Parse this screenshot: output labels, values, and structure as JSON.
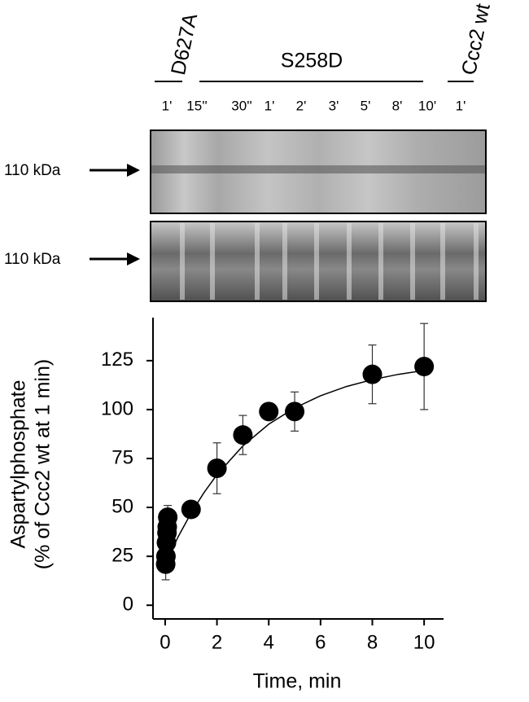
{
  "gel": {
    "groups": [
      "D627A",
      "S258D",
      "Ccc2 wt"
    ],
    "lanes": [
      "1'",
      "15''",
      "30''",
      "1'",
      "2'",
      "3'",
      "5'",
      "8'",
      "10'",
      "1'"
    ],
    "markers": [
      "110 kDa",
      "110 kDa"
    ]
  },
  "chart_data": {
    "type": "scatter",
    "x_label": "Time, min",
    "y_label": [
      "Aspartylphosphate",
      "(% of Ccc2 wt at 1 min)"
    ],
    "series": [
      {
        "color": "#000000",
        "x": [
          0.02,
          0.03,
          0.05,
          0.07,
          0.08,
          0.1,
          1,
          2,
          3,
          4,
          5,
          8,
          10
        ],
        "values": [
          21,
          25,
          32,
          37,
          40,
          45,
          49,
          70,
          87,
          99,
          99,
          118,
          122
        ],
        "errors": [
          8,
          6,
          5,
          5,
          5,
          6,
          2,
          13,
          10,
          2,
          10,
          15,
          22
        ]
      }
    ],
    "fit": {
      "color": "#000000",
      "x": [
        0,
        0.5,
        1,
        1.5,
        2,
        3,
        4,
        5,
        6,
        7,
        8,
        9,
        10
      ],
      "values": [
        21,
        35,
        47.1,
        57.6,
        66.7,
        81.4,
        92.5,
        100.8,
        107.1,
        111.8,
        115.3,
        118,
        120
      ]
    },
    "xlim": [
      -0.47,
      10.75
    ],
    "ylim": [
      -7,
      147
    ],
    "xticks": [
      0,
      2,
      4,
      6,
      8,
      10
    ],
    "yticks": [
      0,
      25,
      50,
      75,
      100,
      125
    ],
    "grid": false
  }
}
